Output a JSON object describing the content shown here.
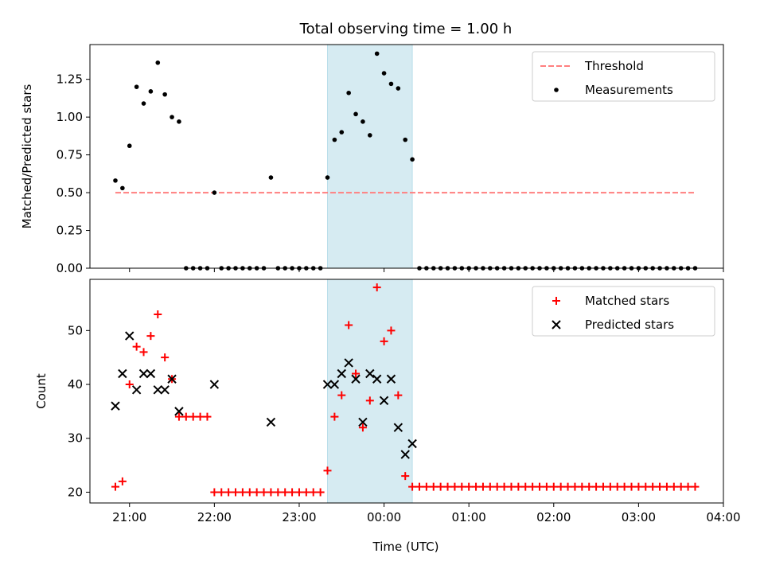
{
  "chart_data": [
    {
      "type": "scatter",
      "title": "Total observing time = 1.00 h",
      "xlabel": "",
      "ylabel": "Matched/Predicted stars",
      "xlim": [
        "20:32",
        "04:00"
      ],
      "ylim": [
        0,
        1.48
      ],
      "yticks": [
        "0.00",
        "0.25",
        "0.50",
        "0.75",
        "1.00",
        "1.25"
      ],
      "highlight_span": [
        "23:20",
        "00:20"
      ],
      "highlight_color": "#add8e6",
      "threshold": {
        "name": "Threshold",
        "value": 0.5,
        "x_range": [
          "20:50",
          "03:40"
        ],
        "color": "#ff7f7f"
      },
      "series": [
        {
          "name": "Measurements",
          "color": "#000000",
          "points": [
            [
              "20:50",
              0.58
            ],
            [
              "20:55",
              0.53
            ],
            [
              "21:00",
              0.81
            ],
            [
              "21:05",
              1.2
            ],
            [
              "21:10",
              1.09
            ],
            [
              "21:15",
              1.17
            ],
            [
              "21:20",
              1.36
            ],
            [
              "21:25",
              1.15
            ],
            [
              "21:30",
              1.0
            ],
            [
              "21:35",
              0.97
            ],
            [
              "21:40",
              0
            ],
            [
              "21:45",
              0
            ],
            [
              "21:50",
              0
            ],
            [
              "21:55",
              0
            ],
            [
              "22:00",
              0.5
            ],
            [
              "22:05",
              0
            ],
            [
              "22:10",
              0
            ],
            [
              "22:15",
              0
            ],
            [
              "22:20",
              0
            ],
            [
              "22:25",
              0
            ],
            [
              "22:30",
              0
            ],
            [
              "22:35",
              0
            ],
            [
              "22:40",
              0.6
            ],
            [
              "22:45",
              0
            ],
            [
              "22:50",
              0
            ],
            [
              "22:55",
              0
            ],
            [
              "23:00",
              0
            ],
            [
              "23:05",
              0
            ],
            [
              "23:10",
              0
            ],
            [
              "23:15",
              0
            ],
            [
              "23:20",
              0.6
            ],
            [
              "23:25",
              0.85
            ],
            [
              "23:30",
              0.9
            ],
            [
              "23:35",
              1.16
            ],
            [
              "23:40",
              1.02
            ],
            [
              "23:45",
              0.97
            ],
            [
              "23:50",
              0.88
            ],
            [
              "23:55",
              1.42
            ],
            [
              "00:00",
              1.29
            ],
            [
              "00:05",
              1.22
            ],
            [
              "00:10",
              1.19
            ],
            [
              "00:15",
              0.85
            ],
            [
              "00:20",
              0.72
            ],
            [
              "00:25",
              0
            ],
            [
              "00:30",
              0
            ],
            [
              "00:35",
              0
            ],
            [
              "00:40",
              0
            ],
            [
              "00:45",
              0
            ],
            [
              "00:50",
              0
            ],
            [
              "00:55",
              0
            ],
            [
              "01:00",
              0
            ],
            [
              "01:05",
              0
            ],
            [
              "01:10",
              0
            ],
            [
              "01:15",
              0
            ],
            [
              "01:20",
              0
            ],
            [
              "01:25",
              0
            ],
            [
              "01:30",
              0
            ],
            [
              "01:35",
              0
            ],
            [
              "01:40",
              0
            ],
            [
              "01:45",
              0
            ],
            [
              "01:50",
              0
            ],
            [
              "01:55",
              0
            ],
            [
              "02:00",
              0
            ],
            [
              "02:05",
              0
            ],
            [
              "02:10",
              0
            ],
            [
              "02:15",
              0
            ],
            [
              "02:20",
              0
            ],
            [
              "02:25",
              0
            ],
            [
              "02:30",
              0
            ],
            [
              "02:35",
              0
            ],
            [
              "02:40",
              0
            ],
            [
              "02:45",
              0
            ],
            [
              "02:50",
              0
            ],
            [
              "02:55",
              0
            ],
            [
              "03:00",
              0
            ],
            [
              "03:05",
              0
            ],
            [
              "03:10",
              0
            ],
            [
              "03:15",
              0
            ],
            [
              "03:20",
              0
            ],
            [
              "03:25",
              0
            ],
            [
              "03:30",
              0
            ],
            [
              "03:35",
              0
            ],
            [
              "03:40",
              0
            ]
          ]
        }
      ],
      "legend": {
        "placement": "top-right",
        "entries": [
          "Threshold",
          "Measurements"
        ]
      },
      "grid": false
    },
    {
      "type": "scatter",
      "title": "",
      "xlabel": "Time (UTC)",
      "ylabel": "Count",
      "xlim": [
        "20:32",
        "04:00"
      ],
      "ylim": [
        18,
        59.5
      ],
      "yticks": [
        "20",
        "30",
        "40",
        "50"
      ],
      "xticks": [
        "21:00",
        "22:00",
        "23:00",
        "00:00",
        "01:00",
        "02:00",
        "03:00",
        "04:00"
      ],
      "highlight_span": [
        "23:20",
        "00:20"
      ],
      "highlight_color": "#add8e6",
      "series": [
        {
          "name": "Matched stars",
          "marker": "plus",
          "color": "#ff0000",
          "points": [
            [
              "20:50",
              21
            ],
            [
              "20:55",
              22
            ],
            [
              "21:00",
              40
            ],
            [
              "21:05",
              47
            ],
            [
              "21:10",
              46
            ],
            [
              "21:15",
              49
            ],
            [
              "21:20",
              53
            ],
            [
              "21:25",
              45
            ],
            [
              "21:30",
              41
            ],
            [
              "21:35",
              34
            ],
            [
              "21:40",
              34
            ],
            [
              "21:45",
              34
            ],
            [
              "21:50",
              34
            ],
            [
              "21:55",
              34
            ],
            [
              "22:00",
              20
            ],
            [
              "22:05",
              20
            ],
            [
              "22:10",
              20
            ],
            [
              "22:15",
              20
            ],
            [
              "22:20",
              20
            ],
            [
              "22:25",
              20
            ],
            [
              "22:30",
              20
            ],
            [
              "22:35",
              20
            ],
            [
              "22:40",
              20
            ],
            [
              "22:45",
              20
            ],
            [
              "22:50",
              20
            ],
            [
              "22:55",
              20
            ],
            [
              "23:00",
              20
            ],
            [
              "23:05",
              20
            ],
            [
              "23:10",
              20
            ],
            [
              "23:15",
              20
            ],
            [
              "23:20",
              24
            ],
            [
              "23:25",
              34
            ],
            [
              "23:30",
              38
            ],
            [
              "23:35",
              51
            ],
            [
              "23:40",
              42
            ],
            [
              "23:45",
              32
            ],
            [
              "23:50",
              37
            ],
            [
              "23:55",
              58
            ],
            [
              "00:00",
              48
            ],
            [
              "00:05",
              50
            ],
            [
              "00:10",
              38
            ],
            [
              "00:15",
              23
            ],
            [
              "00:20",
              21
            ],
            [
              "00:25",
              21
            ],
            [
              "00:30",
              21
            ],
            [
              "00:35",
              21
            ],
            [
              "00:40",
              21
            ],
            [
              "00:45",
              21
            ],
            [
              "00:50",
              21
            ],
            [
              "00:55",
              21
            ],
            [
              "01:00",
              21
            ],
            [
              "01:05",
              21
            ],
            [
              "01:10",
              21
            ],
            [
              "01:15",
              21
            ],
            [
              "01:20",
              21
            ],
            [
              "01:25",
              21
            ],
            [
              "01:30",
              21
            ],
            [
              "01:35",
              21
            ],
            [
              "01:40",
              21
            ],
            [
              "01:45",
              21
            ],
            [
              "01:50",
              21
            ],
            [
              "01:55",
              21
            ],
            [
              "02:00",
              21
            ],
            [
              "02:05",
              21
            ],
            [
              "02:10",
              21
            ],
            [
              "02:15",
              21
            ],
            [
              "02:20",
              21
            ],
            [
              "02:25",
              21
            ],
            [
              "02:30",
              21
            ],
            [
              "02:35",
              21
            ],
            [
              "02:40",
              21
            ],
            [
              "02:45",
              21
            ],
            [
              "02:50",
              21
            ],
            [
              "02:55",
              21
            ],
            [
              "03:00",
              21
            ],
            [
              "03:05",
              21
            ],
            [
              "03:10",
              21
            ],
            [
              "03:15",
              21
            ],
            [
              "03:20",
              21
            ],
            [
              "03:25",
              21
            ],
            [
              "03:30",
              21
            ],
            [
              "03:35",
              21
            ],
            [
              "03:40",
              21
            ]
          ]
        },
        {
          "name": "Predicted stars",
          "marker": "x",
          "color": "#000000",
          "points": [
            [
              "20:50",
              36
            ],
            [
              "20:55",
              42
            ],
            [
              "21:00",
              49
            ],
            [
              "21:05",
              39
            ],
            [
              "21:10",
              42
            ],
            [
              "21:15",
              42
            ],
            [
              "21:20",
              39
            ],
            [
              "21:25",
              39
            ],
            [
              "21:30",
              41
            ],
            [
              "21:35",
              35
            ],
            [
              "22:00",
              40
            ],
            [
              "22:40",
              33
            ],
            [
              "23:20",
              40
            ],
            [
              "23:25",
              40
            ],
            [
              "23:30",
              42
            ],
            [
              "23:35",
              44
            ],
            [
              "23:40",
              41
            ],
            [
              "23:45",
              33
            ],
            [
              "23:50",
              42
            ],
            [
              "23:55",
              41
            ],
            [
              "00:00",
              37
            ],
            [
              "00:05",
              41
            ],
            [
              "00:10",
              32
            ],
            [
              "00:15",
              27
            ],
            [
              "00:20",
              29
            ]
          ]
        }
      ],
      "legend": {
        "placement": "top-right",
        "entries": [
          "Matched stars",
          "Predicted stars"
        ]
      },
      "grid": false
    }
  ]
}
